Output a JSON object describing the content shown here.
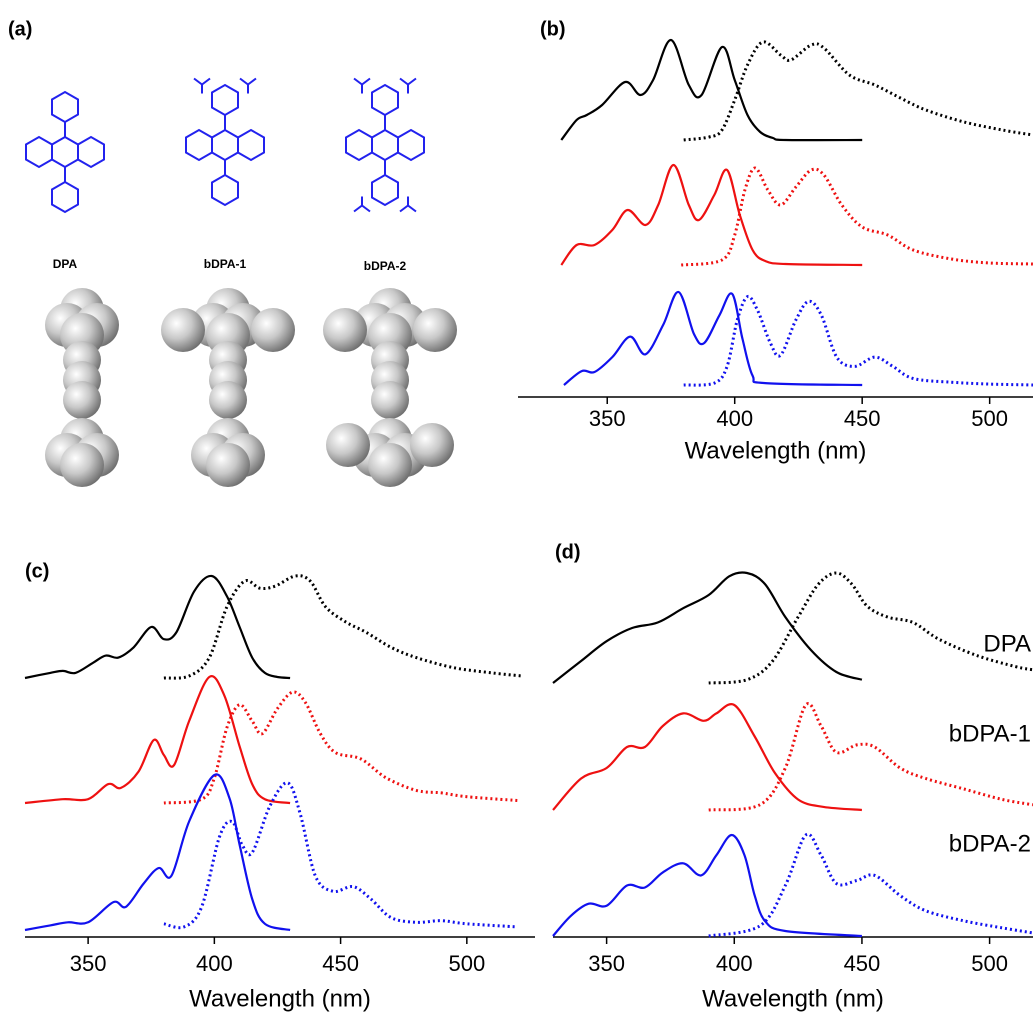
{
  "panel_a": {
    "label": "(a)",
    "molecules": [
      "DPA",
      "bDPA-1",
      "bDPA-2"
    ]
  },
  "chart_data": [
    {
      "type": "line",
      "panel_label": "(b)",
      "xlabel": "Wavelength (nm)",
      "xlim": [
        315,
        517
      ],
      "xticks": [
        350,
        400,
        450,
        500
      ],
      "series": [
        {
          "color": "#000000",
          "dash": false,
          "x": [
            332,
            338,
            342,
            348,
            357,
            363,
            368,
            375,
            382,
            387,
            395,
            400,
            405,
            410,
            415,
            420,
            450
          ],
          "values": [
            0,
            0.2,
            0.25,
            0.35,
            0.58,
            0.45,
            0.6,
            1.0,
            0.55,
            0.45,
            0.93,
            0.6,
            0.25,
            0.08,
            0.02,
            0,
            0
          ]
        },
        {
          "color": "#000000",
          "dash": true,
          "x": [
            380,
            390,
            395,
            400,
            405,
            411,
            418,
            422,
            430,
            435,
            445,
            455,
            465,
            475,
            490,
            505,
            517
          ],
          "values": [
            0,
            0.03,
            0.1,
            0.4,
            0.75,
            0.98,
            0.85,
            0.8,
            0.95,
            0.92,
            0.65,
            0.55,
            0.42,
            0.3,
            0.18,
            0.1,
            0.05
          ]
        },
        {
          "color": "#ee1111",
          "dash": false,
          "x": [
            332,
            338,
            345,
            352,
            358,
            365,
            370,
            376,
            382,
            386,
            392,
            397,
            402,
            407,
            412,
            420,
            450
          ],
          "values": [
            0,
            0.2,
            0.2,
            0.35,
            0.55,
            0.4,
            0.6,
            1.0,
            0.6,
            0.45,
            0.7,
            0.95,
            0.5,
            0.15,
            0.04,
            0.01,
            0
          ]
        },
        {
          "color": "#ee1111",
          "dash": true,
          "x": [
            379,
            395,
            400,
            404,
            408,
            413,
            418,
            424,
            430,
            435,
            442,
            450,
            460,
            470,
            485,
            500,
            517
          ],
          "values": [
            0,
            0.05,
            0.3,
            0.75,
            0.97,
            0.75,
            0.6,
            0.78,
            0.95,
            0.9,
            0.6,
            0.38,
            0.3,
            0.15,
            0.06,
            0.02,
            0.01
          ]
        },
        {
          "color": "#1111ee",
          "dash": false,
          "x": [
            333,
            340,
            345,
            352,
            359,
            365,
            372,
            378,
            384,
            388,
            394,
            399,
            403,
            407,
            412,
            450
          ],
          "values": [
            0,
            0.15,
            0.14,
            0.3,
            0.52,
            0.33,
            0.65,
            1.0,
            0.55,
            0.45,
            0.75,
            0.98,
            0.5,
            0.1,
            0.02,
            0
          ]
        },
        {
          "color": "#1111ee",
          "dash": true,
          "x": [
            380,
            392,
            397,
            401,
            405,
            409,
            414,
            418,
            424,
            429,
            434,
            440,
            447,
            455,
            462,
            470,
            485,
            500,
            517
          ],
          "values": [
            0,
            0.02,
            0.2,
            0.7,
            0.95,
            0.8,
            0.45,
            0.32,
            0.7,
            0.9,
            0.75,
            0.3,
            0.2,
            0.3,
            0.2,
            0.07,
            0.03,
            0.01,
            0
          ]
        }
      ]
    },
    {
      "type": "line",
      "panel_label": "(c)",
      "xlabel": "Wavelength (nm)",
      "xlim": [
        325,
        527
      ],
      "xticks": [
        350,
        400,
        450,
        500
      ],
      "series": [
        {
          "color": "#000000",
          "dash": false,
          "x": [
            325,
            335,
            340,
            345,
            352,
            357,
            362,
            368,
            375,
            380,
            385,
            392,
            399,
            405,
            410,
            415,
            420,
            425,
            430
          ],
          "values": [
            0,
            0.05,
            0.07,
            0.05,
            0.15,
            0.22,
            0.2,
            0.3,
            0.5,
            0.38,
            0.45,
            0.85,
            1.0,
            0.8,
            0.5,
            0.2,
            0.05,
            0.01,
            0
          ]
        },
        {
          "color": "#000000",
          "dash": true,
          "x": [
            380,
            390,
            398,
            405,
            412,
            418,
            424,
            432,
            438,
            444,
            452,
            460,
            470,
            480,
            495,
            510,
            522
          ],
          "values": [
            0,
            0.02,
            0.2,
            0.7,
            0.95,
            0.88,
            0.9,
            1.0,
            0.95,
            0.7,
            0.55,
            0.45,
            0.3,
            0.2,
            0.1,
            0.05,
            0.02
          ]
        },
        {
          "color": "#ee1111",
          "dash": false,
          "x": [
            325,
            340,
            350,
            358,
            363,
            370,
            376,
            380,
            384,
            390,
            398,
            404,
            410,
            415,
            420,
            430
          ],
          "values": [
            0,
            0.03,
            0.03,
            0.15,
            0.12,
            0.25,
            0.5,
            0.38,
            0.3,
            0.65,
            1.0,
            0.85,
            0.45,
            0.15,
            0.03,
            0
          ]
        },
        {
          "color": "#ee1111",
          "dash": true,
          "x": [
            380,
            395,
            400,
            405,
            410,
            415,
            419,
            425,
            431,
            436,
            442,
            448,
            458,
            468,
            480,
            490,
            500,
            520
          ],
          "values": [
            0,
            0.03,
            0.2,
            0.6,
            0.78,
            0.65,
            0.55,
            0.75,
            0.88,
            0.8,
            0.55,
            0.4,
            0.35,
            0.2,
            0.1,
            0.08,
            0.05,
            0.02
          ]
        },
        {
          "color": "#1111ee",
          "dash": false,
          "x": [
            325,
            335,
            342,
            350,
            360,
            365,
            372,
            378,
            383,
            390,
            400,
            406,
            410,
            415,
            420,
            430
          ],
          "values": [
            0,
            0.03,
            0.05,
            0.05,
            0.18,
            0.15,
            0.3,
            0.4,
            0.35,
            0.7,
            1.0,
            0.85,
            0.55,
            0.2,
            0.04,
            0
          ]
        },
        {
          "color": "#1111ee",
          "dash": true,
          "x": [
            380,
            388,
            395,
            402,
            407,
            411,
            415,
            422,
            429,
            434,
            440,
            447,
            455,
            462,
            470,
            480,
            490,
            500,
            520
          ],
          "values": [
            0.04,
            0.02,
            0.15,
            0.6,
            0.7,
            0.55,
            0.5,
            0.8,
            0.95,
            0.75,
            0.35,
            0.25,
            0.28,
            0.2,
            0.08,
            0.05,
            0.06,
            0.04,
            0.02
          ]
        }
      ]
    },
    {
      "type": "line",
      "panel_label": "(d)",
      "xlabel": "Wavelength (nm)",
      "xlim": [
        329,
        517
      ],
      "xticks": [
        350,
        400,
        450,
        500
      ],
      "annotations": [
        {
          "text": "DPA",
          "color": "#000000"
        },
        {
          "text": "bDPA-1",
          "color": "#ee1111"
        },
        {
          "text": "bDPA-2",
          "color": "#1111ee"
        }
      ],
      "series": [
        {
          "color": "#000000",
          "dash": false,
          "x": [
            329,
            340,
            350,
            360,
            370,
            380,
            390,
            398,
            405,
            412,
            420,
            430,
            440,
            450
          ],
          "values": [
            0,
            0.2,
            0.38,
            0.5,
            0.55,
            0.68,
            0.8,
            0.97,
            1.0,
            0.9,
            0.6,
            0.3,
            0.1,
            0.03
          ]
        },
        {
          "color": "#000000",
          "dash": true,
          "x": [
            390,
            405,
            415,
            425,
            433,
            440,
            446,
            452,
            460,
            470,
            480,
            495,
            510,
            517
          ],
          "values": [
            0,
            0.03,
            0.2,
            0.6,
            0.9,
            1.0,
            0.9,
            0.7,
            0.6,
            0.55,
            0.4,
            0.25,
            0.15,
            0.12
          ]
        },
        {
          "color": "#ee1111",
          "dash": false,
          "x": [
            329,
            340,
            350,
            358,
            365,
            372,
            380,
            388,
            393,
            400,
            408,
            416,
            425,
            435,
            450
          ],
          "values": [
            0,
            0.3,
            0.4,
            0.6,
            0.6,
            0.8,
            0.92,
            0.85,
            0.92,
            1.0,
            0.7,
            0.35,
            0.1,
            0.03,
            0
          ]
        },
        {
          "color": "#ee1111",
          "dash": true,
          "x": [
            390,
            410,
            420,
            428,
            434,
            440,
            448,
            455,
            465,
            475,
            490,
            505,
            517
          ],
          "values": [
            0,
            0.05,
            0.4,
            1.0,
            0.8,
            0.55,
            0.62,
            0.6,
            0.4,
            0.3,
            0.2,
            0.1,
            0.05
          ]
        },
        {
          "color": "#1111ee",
          "dash": false,
          "x": [
            329,
            336,
            343,
            350,
            358,
            365,
            372,
            380,
            387,
            393,
            399,
            404,
            408,
            412,
            420,
            450
          ],
          "values": [
            0,
            0.2,
            0.32,
            0.3,
            0.5,
            0.48,
            0.63,
            0.72,
            0.6,
            0.8,
            1.0,
            0.8,
            0.4,
            0.15,
            0.05,
            0
          ]
        },
        {
          "color": "#1111ee",
          "dash": true,
          "x": [
            390,
            410,
            420,
            428,
            434,
            440,
            448,
            455,
            465,
            475,
            490,
            505,
            517
          ],
          "values": [
            0,
            0.1,
            0.5,
            1.0,
            0.8,
            0.52,
            0.55,
            0.6,
            0.4,
            0.25,
            0.15,
            0.08,
            0.03
          ]
        }
      ]
    }
  ]
}
